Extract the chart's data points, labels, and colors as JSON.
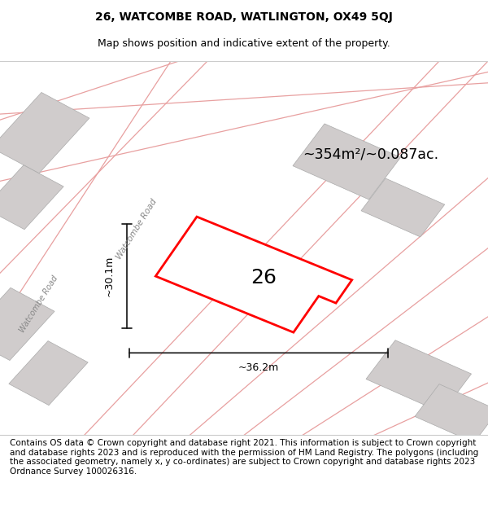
{
  "title_line1": "26, WATCOMBE ROAD, WATLINGTON, OX49 5QJ",
  "title_line2": "Map shows position and indicative extent of the property.",
  "area_label": "~354m²/~0.087ac.",
  "property_number": "26",
  "dim_vertical": "~30.1m",
  "dim_horizontal": "~36.2m",
  "road_label": "Watcombe Road",
  "footer_text": "Contains OS data © Crown copyright and database right 2021. This information is subject to Crown copyright and database rights 2023 and is reproduced with the permission of HM Land Registry. The polygons (including the associated geometry, namely x, y co-ordinates) are subject to Crown copyright and database rights 2023 Ordnance Survey 100026316.",
  "bg_color": "#f5f0f0",
  "map_bg": "#f9f6f6",
  "plot_color": "#ff0000",
  "building_color": "#d0cccc",
  "road_line_color": "#e8a0a0",
  "dim_line_color": "#111111",
  "title_fontsize": 10,
  "subtitle_fontsize": 9,
  "footer_fontsize": 7.5
}
